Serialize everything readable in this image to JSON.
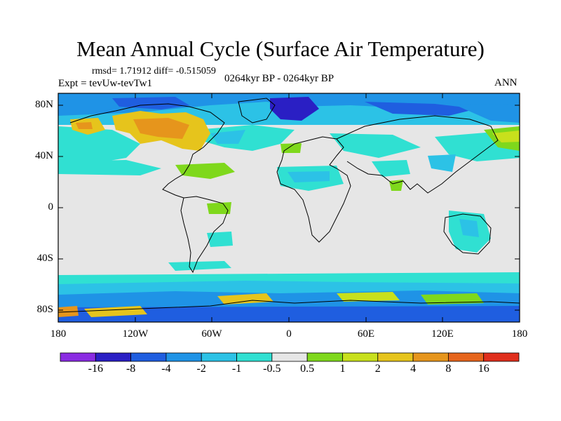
{
  "title": "Mean Annual Cycle (Surface Air Temperature)",
  "stats_text": "rmsd= 1.71912 diff= -0.515059",
  "experiment_text": "Expt = tevUw-tevTw1",
  "period_text": "0264kyr BP - 0264kyr BP",
  "season_text": "ANN",
  "lat_labels": [
    "80N",
    "40N",
    "0",
    "40S",
    "80S"
  ],
  "lon_labels": [
    "180",
    "120W",
    "60W",
    "0",
    "60E",
    "120E",
    "180"
  ],
  "colorbar": {
    "labels": [
      "-16",
      "-8",
      "-4",
      "-2",
      "-1",
      "-0.5",
      "0.5",
      "1",
      "2",
      "4",
      "8",
      "16"
    ],
    "colors": [
      "#8a2be2",
      "#2a1fc4",
      "#1f5ee0",
      "#1f93e6",
      "#2cc2e6",
      "#30e0d2",
      "#e6e6e6",
      "#7fd81c",
      "#c8e01c",
      "#e6c41c",
      "#e6951c",
      "#e6651c",
      "#e02e1c"
    ]
  }
}
